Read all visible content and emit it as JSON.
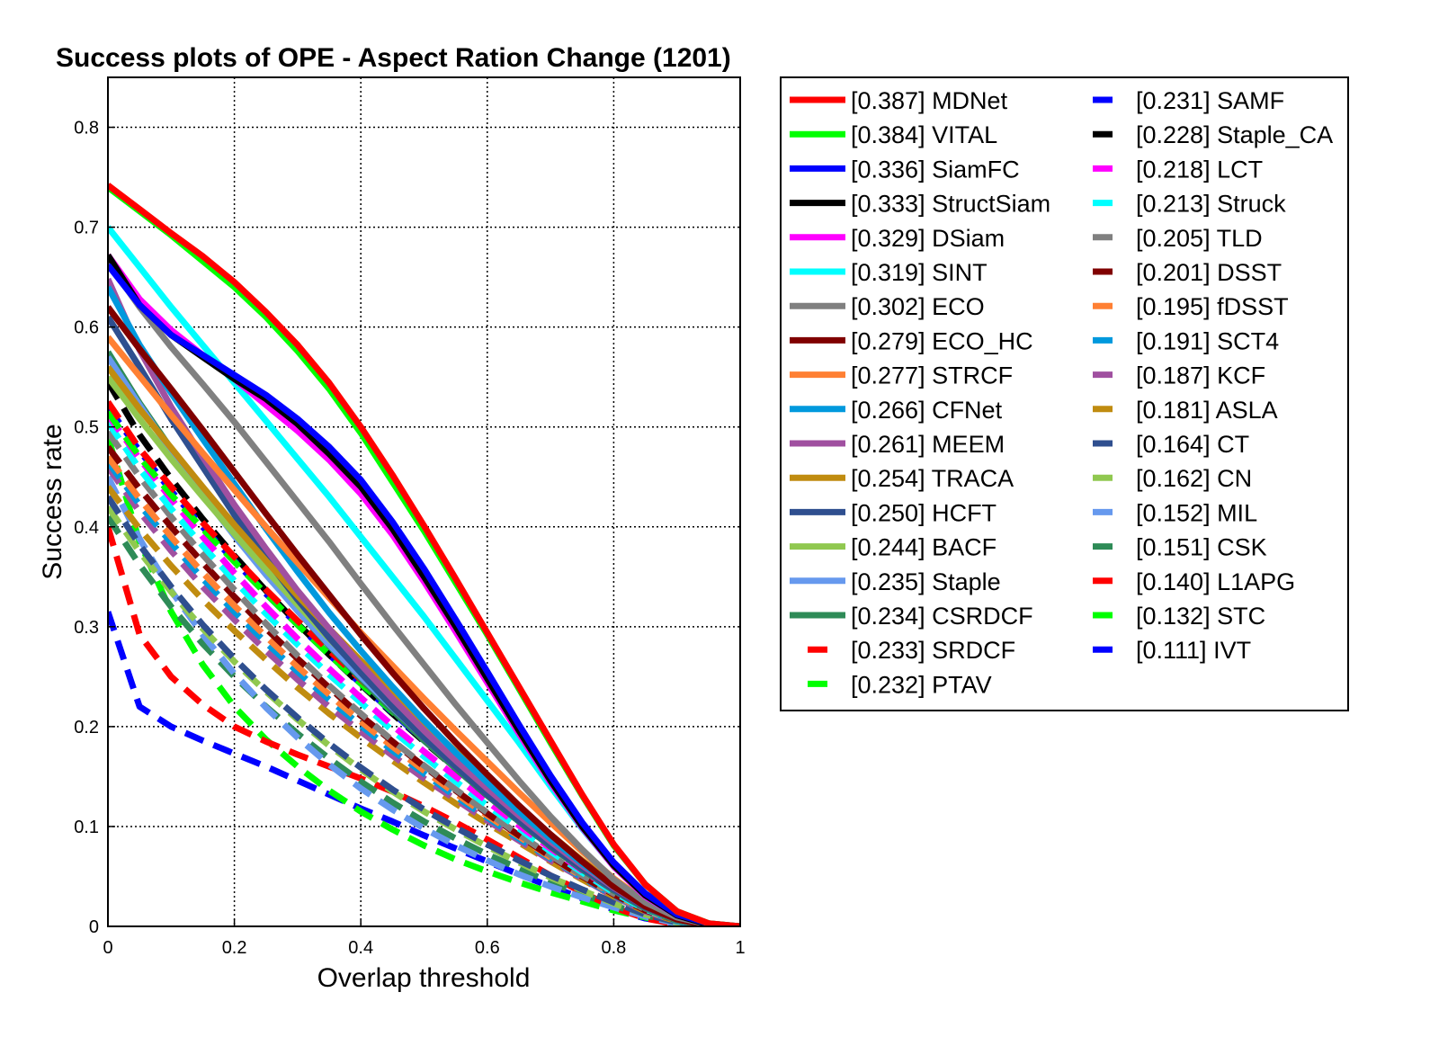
{
  "chart_data": {
    "type": "line",
    "title": "Success plots of OPE - Aspect Ration Change (1201)",
    "xlabel": "Overlap threshold",
    "ylabel": "Success rate",
    "xlim": [
      0,
      1
    ],
    "ylim": [
      0,
      0.85
    ],
    "x_ticks": [
      0,
      0.2,
      0.4,
      0.6,
      0.8,
      1
    ],
    "y_ticks": [
      0,
      0.1,
      0.2,
      0.3,
      0.4,
      0.5,
      0.6,
      0.7,
      0.8
    ],
    "x_tick_labels": [
      "0",
      "0.2",
      "0.4",
      "0.6",
      "0.8",
      "1"
    ],
    "y_tick_labels": [
      "0",
      "0.1",
      "0.2",
      "0.3",
      "0.4",
      "0.5",
      "0.6",
      "0.7",
      "0.8"
    ],
    "grid": true,
    "legend_position": "right",
    "x": [
      0,
      0.05,
      0.1,
      0.15,
      0.2,
      0.25,
      0.3,
      0.35,
      0.4,
      0.45,
      0.5,
      0.55,
      0.6,
      0.65,
      0.7,
      0.75,
      0.8,
      0.85,
      0.9,
      0.95,
      1
    ],
    "series": [
      {
        "name": "[0.387] MDNet",
        "color": "#ff0000",
        "dash": false,
        "values": [
          0.742,
          0.718,
          0.694,
          0.671,
          0.645,
          0.615,
          0.582,
          0.544,
          0.5,
          0.452,
          0.401,
          0.348,
          0.294,
          0.24,
          0.186,
          0.132,
          0.082,
          0.042,
          0.015,
          0.003,
          0.0
        ]
      },
      {
        "name": "[0.384] VITAL",
        "color": "#00ff00",
        "dash": false,
        "values": [
          0.74,
          0.716,
          0.692,
          0.666,
          0.64,
          0.61,
          0.576,
          0.538,
          0.494,
          0.445,
          0.396,
          0.344,
          0.292,
          0.238,
          0.184,
          0.131,
          0.081,
          0.042,
          0.015,
          0.003,
          0.0
        ]
      },
      {
        "name": "[0.336] SiamFC",
        "color": "#0000ff",
        "dash": false,
        "values": [
          0.662,
          0.622,
          0.592,
          0.572,
          0.552,
          0.532,
          0.508,
          0.48,
          0.447,
          0.405,
          0.358,
          0.307,
          0.255,
          0.202,
          0.151,
          0.104,
          0.064,
          0.033,
          0.012,
          0.003,
          0.0
        ]
      },
      {
        "name": "[0.333] StructSiam",
        "color": "#000000",
        "dash": false,
        "values": [
          0.672,
          0.622,
          0.592,
          0.57,
          0.548,
          0.528,
          0.503,
          0.473,
          0.44,
          0.398,
          0.35,
          0.3,
          0.248,
          0.196,
          0.146,
          0.1,
          0.061,
          0.031,
          0.011,
          0.002,
          0.0
        ]
      },
      {
        "name": "[0.329] DSiam",
        "color": "#ff00ff",
        "dash": false,
        "values": [
          0.672,
          0.628,
          0.597,
          0.572,
          0.548,
          0.522,
          0.496,
          0.467,
          0.433,
          0.392,
          0.345,
          0.295,
          0.244,
          0.193,
          0.144,
          0.099,
          0.06,
          0.03,
          0.011,
          0.002,
          0.0
        ]
      },
      {
        "name": "[0.319] SINT",
        "color": "#00ffff",
        "dash": false,
        "values": [
          0.7,
          0.66,
          0.62,
          0.582,
          0.544,
          0.506,
          0.468,
          0.43,
          0.39,
          0.35,
          0.31,
          0.268,
          0.226,
          0.184,
          0.14,
          0.098,
          0.06,
          0.03,
          0.011,
          0.002,
          0.0
        ]
      },
      {
        "name": "[0.302] ECO",
        "color": "#808080",
        "dash": false,
        "values": [
          0.665,
          0.62,
          0.58,
          0.543,
          0.505,
          0.465,
          0.425,
          0.385,
          0.343,
          0.302,
          0.262,
          0.222,
          0.184,
          0.146,
          0.11,
          0.077,
          0.047,
          0.024,
          0.009,
          0.002,
          0.0
        ]
      },
      {
        "name": "[0.279] ECO_HC",
        "color": "#800000",
        "dash": false,
        "values": [
          0.62,
          0.578,
          0.538,
          0.497,
          0.455,
          0.413,
          0.372,
          0.332,
          0.292,
          0.254,
          0.218,
          0.184,
          0.152,
          0.121,
          0.092,
          0.065,
          0.04,
          0.02,
          0.007,
          0.001,
          0.0
        ]
      },
      {
        "name": "[0.277] STRCF",
        "color": "#ff8033",
        "dash": false,
        "values": [
          0.59,
          0.551,
          0.512,
          0.474,
          0.437,
          0.4,
          0.364,
          0.329,
          0.294,
          0.261,
          0.228,
          0.196,
          0.165,
          0.134,
          0.104,
          0.075,
          0.048,
          0.025,
          0.009,
          0.002,
          0.0
        ]
      },
      {
        "name": "[0.266] CFNet",
        "color": "#0099dd",
        "dash": false,
        "values": [
          0.64,
          0.582,
          0.534,
          0.488,
          0.443,
          0.398,
          0.355,
          0.314,
          0.276,
          0.24,
          0.206,
          0.174,
          0.144,
          0.115,
          0.088,
          0.063,
          0.04,
          0.021,
          0.008,
          0.002,
          0.0
        ]
      },
      {
        "name": "[0.261] MEEM",
        "color": "#a050a0",
        "dash": false,
        "values": [
          0.648,
          0.577,
          0.52,
          0.47,
          0.422,
          0.378,
          0.336,
          0.298,
          0.262,
          0.228,
          0.196,
          0.166,
          0.138,
          0.111,
          0.085,
          0.061,
          0.039,
          0.02,
          0.007,
          0.001,
          0.0
        ]
      },
      {
        "name": "[0.254] TRACA",
        "color": "#c08c10",
        "dash": false,
        "values": [
          0.56,
          0.518,
          0.479,
          0.44,
          0.402,
          0.366,
          0.331,
          0.298,
          0.266,
          0.235,
          0.204,
          0.175,
          0.147,
          0.119,
          0.092,
          0.066,
          0.042,
          0.022,
          0.008,
          0.002,
          0.0
        ]
      },
      {
        "name": "[0.250] HCFT",
        "color": "#2f4f8f",
        "dash": false,
        "values": [
          0.61,
          0.56,
          0.508,
          0.46,
          0.412,
          0.368,
          0.327,
          0.289,
          0.254,
          0.22,
          0.189,
          0.16,
          0.132,
          0.106,
          0.081,
          0.058,
          0.037,
          0.019,
          0.007,
          0.001,
          0.0
        ]
      },
      {
        "name": "[0.244] BACF",
        "color": "#90c850",
        "dash": false,
        "values": [
          0.55,
          0.508,
          0.468,
          0.43,
          0.393,
          0.357,
          0.322,
          0.288,
          0.256,
          0.224,
          0.194,
          0.165,
          0.137,
          0.11,
          0.084,
          0.06,
          0.038,
          0.02,
          0.007,
          0.001,
          0.0
        ]
      },
      {
        "name": "[0.235] Staple",
        "color": "#6699ee",
        "dash": false,
        "values": [
          0.57,
          0.522,
          0.476,
          0.432,
          0.391,
          0.352,
          0.316,
          0.282,
          0.25,
          0.219,
          0.189,
          0.16,
          0.133,
          0.107,
          0.082,
          0.058,
          0.037,
          0.019,
          0.007,
          0.001,
          0.0
        ]
      },
      {
        "name": "[0.234] CSRDCF",
        "color": "#2e8b57",
        "dash": false,
        "values": [
          0.575,
          0.524,
          0.478,
          0.434,
          0.392,
          0.353,
          0.316,
          0.281,
          0.248,
          0.216,
          0.186,
          0.158,
          0.131,
          0.105,
          0.08,
          0.057,
          0.036,
          0.018,
          0.006,
          0.001,
          0.0
        ]
      },
      {
        "name": "[0.233] SRDCF",
        "color": "#ff0000",
        "dash": true,
        "values": [
          0.525,
          0.478,
          0.44,
          0.404,
          0.37,
          0.337,
          0.306,
          0.276,
          0.247,
          0.219,
          0.192,
          0.165,
          0.138,
          0.112,
          0.087,
          0.063,
          0.041,
          0.021,
          0.008,
          0.002,
          0.0
        ]
      },
      {
        "name": "[0.232] PTAV",
        "color": "#00ff00",
        "dash": true,
        "values": [
          0.515,
          0.47,
          0.432,
          0.398,
          0.365,
          0.333,
          0.302,
          0.272,
          0.243,
          0.215,
          0.188,
          0.161,
          0.135,
          0.11,
          0.085,
          0.062,
          0.04,
          0.021,
          0.008,
          0.002,
          0.0
        ]
      },
      {
        "name": "[0.231] SAMF",
        "color": "#0000ff",
        "dash": true,
        "values": [
          0.52,
          0.476,
          0.436,
          0.4,
          0.366,
          0.333,
          0.302,
          0.272,
          0.243,
          0.214,
          0.186,
          0.159,
          0.133,
          0.108,
          0.083,
          0.06,
          0.039,
          0.02,
          0.007,
          0.001,
          0.0
        ]
      },
      {
        "name": "[0.228] Staple_CA",
        "color": "#000000",
        "dash": true,
        "values": [
          0.545,
          0.492,
          0.448,
          0.408,
          0.371,
          0.336,
          0.303,
          0.272,
          0.242,
          0.213,
          0.185,
          0.158,
          0.131,
          0.105,
          0.08,
          0.057,
          0.036,
          0.018,
          0.006,
          0.001,
          0.0
        ]
      },
      {
        "name": "[0.218] LCT",
        "color": "#ff00ff",
        "dash": true,
        "values": [
          0.512,
          0.468,
          0.428,
          0.39,
          0.354,
          0.32,
          0.288,
          0.258,
          0.229,
          0.201,
          0.175,
          0.15,
          0.125,
          0.101,
          0.078,
          0.056,
          0.036,
          0.018,
          0.006,
          0.001,
          0.0
        ]
      },
      {
        "name": "[0.213] Struck",
        "color": "#00ffff",
        "dash": true,
        "values": [
          0.505,
          0.458,
          0.418,
          0.381,
          0.346,
          0.313,
          0.282,
          0.252,
          0.224,
          0.196,
          0.17,
          0.145,
          0.121,
          0.098,
          0.075,
          0.054,
          0.034,
          0.017,
          0.006,
          0.001,
          0.0
        ]
      },
      {
        "name": "[0.205] TLD",
        "color": "#808080",
        "dash": true,
        "values": [
          0.495,
          0.45,
          0.41,
          0.372,
          0.337,
          0.303,
          0.271,
          0.241,
          0.213,
          0.186,
          0.161,
          0.137,
          0.114,
          0.092,
          0.071,
          0.051,
          0.033,
          0.017,
          0.006,
          0.001,
          0.0
        ]
      },
      {
        "name": "[0.201] DSST",
        "color": "#800000",
        "dash": true,
        "values": [
          0.48,
          0.438,
          0.4,
          0.364,
          0.33,
          0.298,
          0.268,
          0.239,
          0.211,
          0.185,
          0.16,
          0.136,
          0.113,
          0.091,
          0.07,
          0.05,
          0.032,
          0.016,
          0.006,
          0.001,
          0.0
        ]
      },
      {
        "name": "[0.195] fDSST",
        "color": "#ff8033",
        "dash": true,
        "values": [
          0.47,
          0.428,
          0.39,
          0.354,
          0.321,
          0.29,
          0.26,
          0.232,
          0.205,
          0.18,
          0.156,
          0.133,
          0.111,
          0.09,
          0.069,
          0.05,
          0.032,
          0.016,
          0.006,
          0.001,
          0.0
        ]
      },
      {
        "name": "[0.191] SCT4",
        "color": "#0099dd",
        "dash": true,
        "values": [
          0.465,
          0.422,
          0.384,
          0.348,
          0.315,
          0.284,
          0.255,
          0.227,
          0.201,
          0.176,
          0.153,
          0.13,
          0.109,
          0.088,
          0.068,
          0.049,
          0.031,
          0.016,
          0.005,
          0.001,
          0.0
        ]
      },
      {
        "name": "[0.187] KCF",
        "color": "#a050a0",
        "dash": true,
        "values": [
          0.46,
          0.415,
          0.376,
          0.34,
          0.307,
          0.276,
          0.247,
          0.22,
          0.195,
          0.171,
          0.148,
          0.127,
          0.106,
          0.086,
          0.066,
          0.048,
          0.03,
          0.015,
          0.005,
          0.001,
          0.0
        ]
      },
      {
        "name": "[0.181] ASLA",
        "color": "#c08c10",
        "dash": true,
        "values": [
          0.44,
          0.398,
          0.361,
          0.327,
          0.296,
          0.267,
          0.239,
          0.213,
          0.189,
          0.166,
          0.144,
          0.123,
          0.103,
          0.084,
          0.065,
          0.047,
          0.03,
          0.015,
          0.005,
          0.001,
          0.0
        ]
      },
      {
        "name": "[0.164] CT",
        "color": "#2f4f8f",
        "dash": true,
        "values": [
          0.43,
          0.382,
          0.34,
          0.302,
          0.268,
          0.237,
          0.209,
          0.183,
          0.159,
          0.137,
          0.117,
          0.099,
          0.082,
          0.066,
          0.051,
          0.037,
          0.024,
          0.012,
          0.004,
          0.001,
          0.0
        ]
      },
      {
        "name": "[0.162] CN",
        "color": "#90c850",
        "dash": true,
        "values": [
          0.42,
          0.375,
          0.335,
          0.298,
          0.265,
          0.235,
          0.207,
          0.181,
          0.157,
          0.135,
          0.115,
          0.097,
          0.08,
          0.064,
          0.049,
          0.036,
          0.023,
          0.012,
          0.004,
          0.001,
          0.0
        ]
      },
      {
        "name": "[0.152] MIL",
        "color": "#6699ee",
        "dash": true,
        "values": [
          0.45,
          0.388,
          0.336,
          0.292,
          0.253,
          0.219,
          0.189,
          0.162,
          0.138,
          0.117,
          0.098,
          0.081,
          0.066,
          0.052,
          0.04,
          0.029,
          0.019,
          0.01,
          0.003,
          0.001,
          0.0
        ]
      },
      {
        "name": "[0.151] CSK",
        "color": "#2e8b57",
        "dash": true,
        "values": [
          0.41,
          0.362,
          0.32,
          0.283,
          0.25,
          0.22,
          0.193,
          0.168,
          0.145,
          0.124,
          0.105,
          0.088,
          0.072,
          0.058,
          0.044,
          0.032,
          0.021,
          0.011,
          0.004,
          0.001,
          0.0
        ]
      },
      {
        "name": "[0.140] L1APG",
        "color": "#ff0000",
        "dash": true,
        "values": [
          0.4,
          0.292,
          0.25,
          0.222,
          0.2,
          0.185,
          0.172,
          0.16,
          0.148,
          0.135,
          0.12,
          0.104,
          0.087,
          0.069,
          0.051,
          0.034,
          0.019,
          0.008,
          0.002,
          0.0,
          0.0
        ]
      },
      {
        "name": "[0.132] STC",
        "color": "#00ff00",
        "dash": true,
        "values": [
          0.49,
          0.385,
          0.315,
          0.262,
          0.22,
          0.187,
          0.16,
          0.136,
          0.115,
          0.097,
          0.081,
          0.067,
          0.055,
          0.044,
          0.034,
          0.025,
          0.016,
          0.009,
          0.003,
          0.001,
          0.0
        ]
      },
      {
        "name": "[0.111] IVT",
        "color": "#0000ff",
        "dash": true,
        "values": [
          0.315,
          0.22,
          0.2,
          0.186,
          0.173,
          0.16,
          0.146,
          0.132,
          0.118,
          0.105,
          0.091,
          0.078,
          0.065,
          0.052,
          0.04,
          0.028,
          0.017,
          0.008,
          0.003,
          0.0,
          0.0
        ]
      }
    ]
  }
}
